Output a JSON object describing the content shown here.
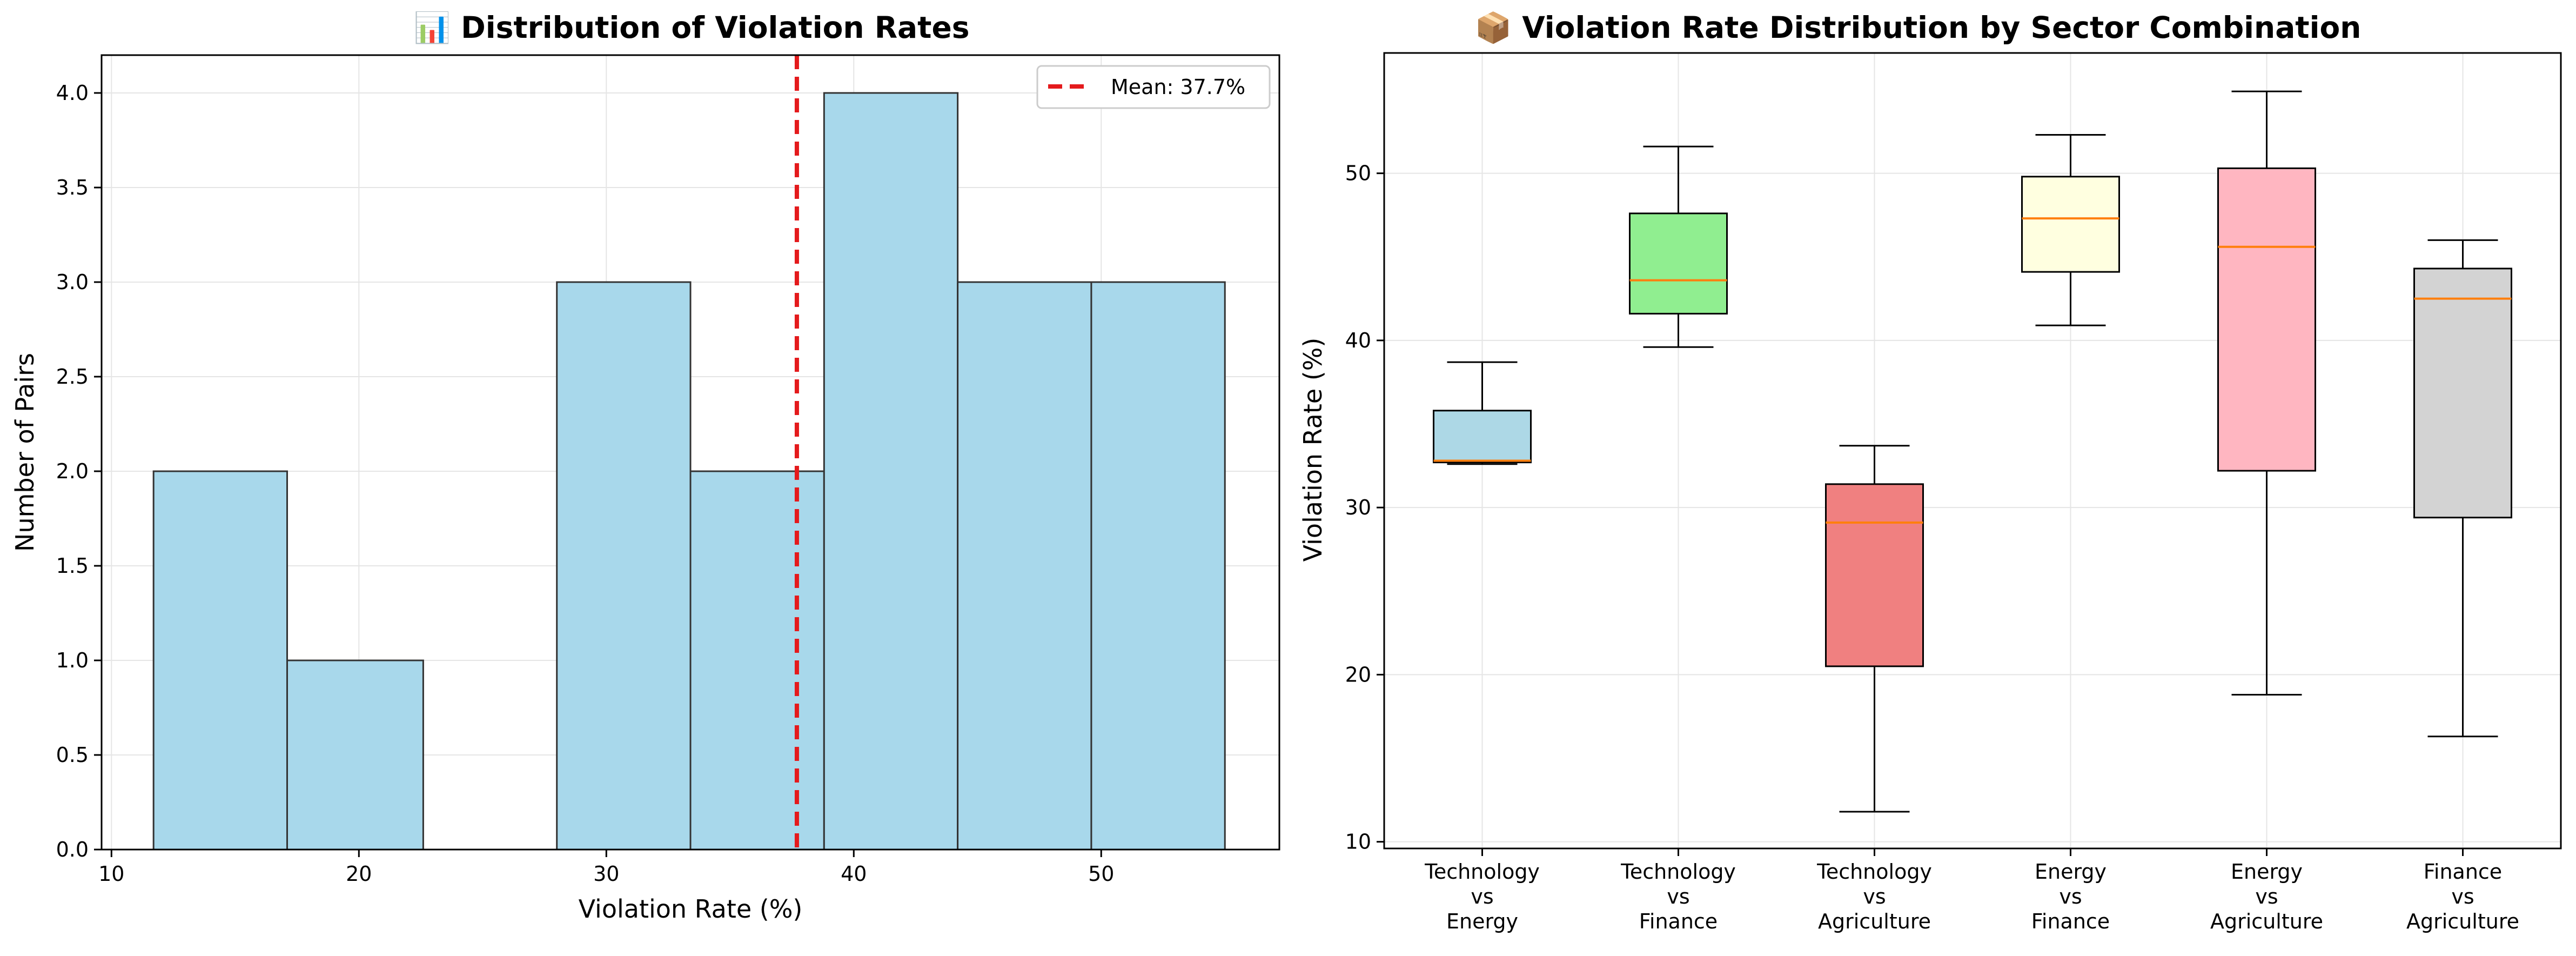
{
  "chart_data": [
    {
      "type": "histogram",
      "title": "📊 Distribution of Violation Rates",
      "xlabel": "Violation Rate (%)",
      "ylabel": "Number of Pairs",
      "xlim": [
        9.6,
        57.2
      ],
      "ylim": [
        0,
        4.2
      ],
      "xticks": [
        "10",
        "20",
        "30",
        "40",
        "50"
      ],
      "yticks": [
        "0.0",
        "0.5",
        "1.0",
        "1.5",
        "2.0",
        "2.5",
        "3.0",
        "3.5",
        "4.0"
      ],
      "bins": [
        {
          "start": 11.7,
          "end": 17.1,
          "count": 2
        },
        {
          "start": 17.1,
          "end": 22.6,
          "count": 1
        },
        {
          "start": 22.6,
          "end": 28.0,
          "count": 0
        },
        {
          "start": 28.0,
          "end": 33.4,
          "count": 3
        },
        {
          "start": 33.4,
          "end": 38.8,
          "count": 2
        },
        {
          "start": 38.8,
          "end": 44.2,
          "count": 4
        },
        {
          "start": 44.2,
          "end": 49.6,
          "count": 3
        },
        {
          "start": 49.6,
          "end": 55.0,
          "count": 3
        }
      ],
      "mean_line": {
        "value": 37.7,
        "label": "Mean: 37.7%",
        "color": "#e41a1c"
      },
      "bar_color": "#a8d8eb",
      "grid": true,
      "legend": "top-right"
    },
    {
      "type": "box",
      "title": "📦 Violation Rate Distribution by Sector Combination",
      "xlabel": "",
      "ylabel": "Violation Rate (%)",
      "ylim": [
        9.6,
        57.2
      ],
      "yticks": [
        "10",
        "20",
        "30",
        "40",
        "50"
      ],
      "categories": [
        {
          "label": [
            "Technology",
            "vs",
            "Energy"
          ],
          "whisker_low": 32.6,
          "q1": 32.7,
          "median": 32.8,
          "q3": 35.8,
          "whisker_high": 38.7,
          "color": "#add8e6"
        },
        {
          "label": [
            "Technology",
            "vs",
            "Finance"
          ],
          "whisker_low": 39.6,
          "q1": 41.6,
          "median": 43.6,
          "q3": 47.6,
          "whisker_high": 51.6,
          "color": "#90ee90"
        },
        {
          "label": [
            "Technology",
            "vs",
            "Agriculture"
          ],
          "whisker_low": 11.8,
          "q1": 20.5,
          "median": 29.1,
          "q3": 31.4,
          "whisker_high": 33.7,
          "color": "#f08080"
        },
        {
          "label": [
            "Energy",
            "vs",
            "Finance"
          ],
          "whisker_low": 40.9,
          "q1": 44.1,
          "median": 47.3,
          "q3": 49.8,
          "whisker_high": 52.3,
          "color": "#ffffe0"
        },
        {
          "label": [
            "Energy",
            "vs",
            "Agriculture"
          ],
          "whisker_low": 18.8,
          "q1": 32.2,
          "median": 45.6,
          "q3": 50.3,
          "whisker_high": 54.9,
          "color": "#ffb6c1"
        },
        {
          "label": [
            "Finance",
            "vs",
            "Agriculture"
          ],
          "whisker_low": 16.3,
          "q1": 29.4,
          "median": 42.5,
          "q3": 44.3,
          "whisker_high": 46.0,
          "color": "#d3d3d3"
        }
      ],
      "median_color": "#ff7f0e",
      "grid": true
    }
  ]
}
